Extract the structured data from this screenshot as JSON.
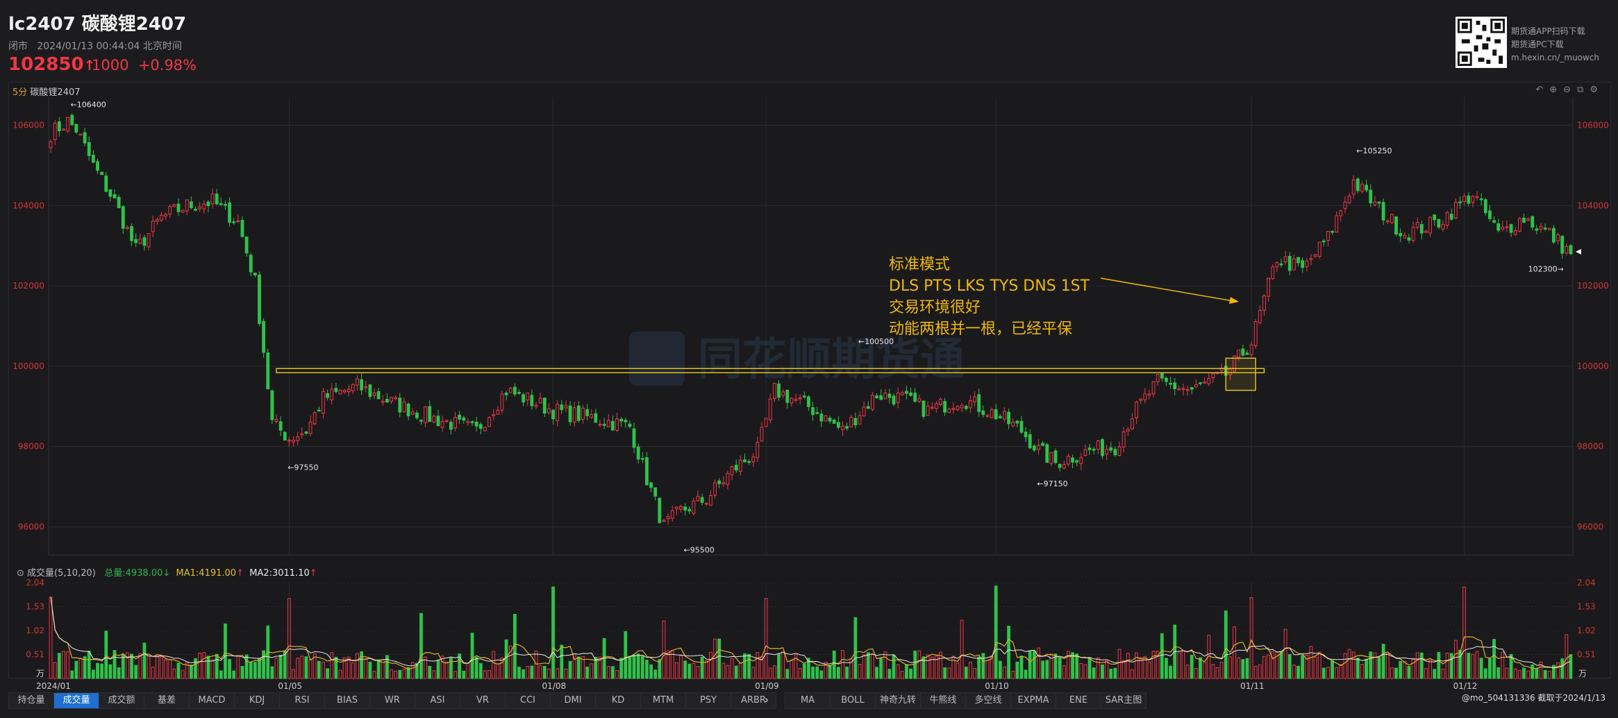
{
  "header": {
    "symbol": "lc2407 碳酸锂2407",
    "status": "闭市",
    "datetime": "2024/01/13 00:44:04 北京时间",
    "price": "102850",
    "change": "1000",
    "change_pct": "+0.98%",
    "arrow": "↑"
  },
  "qr": {
    "line1": "期货通APP扫码下载",
    "line2": "期货通PC下载",
    "line3": "m.hexin.cn/_muowch"
  },
  "chart_title": {
    "period": "5分",
    "name": "碳酸锂2407"
  },
  "watermark": "同花顺期货通",
  "volume_legend": {
    "name": "成交量(5,10,20)",
    "total": "总量:4938.00",
    "ma1": "MA1:4191.00",
    "ma2": "MA2:3011.10"
  },
  "annotation": {
    "line1": "标准模式",
    "line2": "DLS PTS LKS TYS DNS 1ST",
    "line3": "交易环境很好",
    "line4": "动能两根并一根，已经平保"
  },
  "tabs_left": [
    "持仓量",
    "成交量",
    "成交额",
    "基差",
    "MACD",
    "KDJ",
    "RSI",
    "BIAS",
    "WR",
    "ASI",
    "VR",
    "CCI",
    "DMI",
    "KD",
    "MTM",
    "PSY",
    "ARBR"
  ],
  "tabs_right": [
    "MA",
    "BOLL",
    "神奇九转",
    "牛熊线",
    "多空线",
    "EXPMA",
    "ENE",
    "SAR主图"
  ],
  "footer": "@mo_504131336  截取于2024/1/13",
  "volume_unit": "万",
  "colors": {
    "up": "#f23645",
    "down": "#2fc24a",
    "ma1": "#e0b020",
    "ma2": "#e8e8e8",
    "annotation": "#f0b800",
    "background": "#1a1a1d"
  },
  "chart_data": [
    {
      "type": "candlestick",
      "ylim": [
        95300,
        106700
      ],
      "y_ticks": [
        96000,
        98000,
        100000,
        102000,
        104000,
        106000
      ],
      "x_ticks": [
        "01/05",
        "01/08",
        "01/09",
        "01/10",
        "01/11",
        "01/12"
      ],
      "anchors": [
        {
          "i": 0,
          "close": 105800
        },
        {
          "i": 4,
          "close": 106100
        },
        {
          "i": 6,
          "close": 105900
        },
        {
          "i": 10,
          "close": 105000
        },
        {
          "i": 15,
          "close": 104100
        },
        {
          "i": 20,
          "close": 102900
        },
        {
          "i": 26,
          "close": 103700
        },
        {
          "i": 32,
          "close": 104000
        },
        {
          "i": 38,
          "close": 104100
        },
        {
          "i": 44,
          "close": 103600
        },
        {
          "i": 48,
          "close": 102100
        },
        {
          "i": 50,
          "close": 100400
        },
        {
          "i": 52,
          "close": 98600
        },
        {
          "i": 56,
          "close": 98200
        },
        {
          "i": 60,
          "close": 98400
        },
        {
          "i": 64,
          "close": 99200
        },
        {
          "i": 72,
          "close": 99500
        },
        {
          "i": 80,
          "close": 99100
        },
        {
          "i": 90,
          "close": 98700
        },
        {
          "i": 100,
          "close": 98400
        },
        {
          "i": 107,
          "close": 99400
        },
        {
          "i": 118,
          "close": 98900
        },
        {
          "i": 128,
          "close": 98700
        },
        {
          "i": 136,
          "close": 98500
        },
        {
          "i": 140,
          "close": 97200
        },
        {
          "i": 144,
          "close": 96000
        },
        {
          "i": 148,
          "close": 96400
        },
        {
          "i": 154,
          "close": 96700
        },
        {
          "i": 160,
          "close": 97400
        },
        {
          "i": 166,
          "close": 97900
        },
        {
          "i": 170,
          "close": 99400
        },
        {
          "i": 178,
          "close": 99000
        },
        {
          "i": 186,
          "close": 98400
        },
        {
          "i": 194,
          "close": 99300
        },
        {
          "i": 200,
          "close": 99200
        },
        {
          "i": 206,
          "close": 98900
        },
        {
          "i": 214,
          "close": 99200
        },
        {
          "i": 222,
          "close": 98800
        },
        {
          "i": 228,
          "close": 98400
        },
        {
          "i": 232,
          "close": 97900
        },
        {
          "i": 236,
          "close": 97600
        },
        {
          "i": 244,
          "close": 97900
        },
        {
          "i": 250,
          "close": 98000
        },
        {
          "i": 254,
          "close": 98800
        },
        {
          "i": 260,
          "close": 99600
        },
        {
          "i": 268,
          "close": 99400
        },
        {
          "i": 276,
          "close": 99800
        },
        {
          "i": 282,
          "close": 100600
        },
        {
          "i": 288,
          "close": 102700
        },
        {
          "i": 294,
          "close": 102400
        },
        {
          "i": 300,
          "close": 103200
        },
        {
          "i": 306,
          "close": 104600
        },
        {
          "i": 312,
          "close": 103900
        },
        {
          "i": 318,
          "close": 103300
        },
        {
          "i": 326,
          "close": 103600
        },
        {
          "i": 334,
          "close": 104300
        },
        {
          "i": 340,
          "close": 103300
        },
        {
          "i": 346,
          "close": 103700
        },
        {
          "i": 352,
          "close": 103300
        },
        {
          "i": 357,
          "close": 102800
        }
      ],
      "bars": 358,
      "price_labels": [
        {
          "text": "106400",
          "value": 106400,
          "bar": 4
        },
        {
          "text": "97550",
          "value": 97550,
          "bar": 55
        },
        {
          "text": "95500",
          "value": 95500,
          "bar": 148
        },
        {
          "text": "100500",
          "value": 100500,
          "bar": 189
        },
        {
          "text": "97150",
          "value": 97150,
          "bar": 231
        },
        {
          "text": "105250",
          "value": 105250,
          "bar": 306
        },
        {
          "text": "102300",
          "value": 102300,
          "bar": 356
        }
      ],
      "support_line": {
        "value": 99890,
        "from_bar": 53,
        "to_bar": 285
      }
    },
    {
      "type": "bar",
      "name": "成交量",
      "ylim": [
        0,
        2.04
      ],
      "y_ticks": [
        0.51,
        1.02,
        1.53,
        2.04
      ],
      "x_ticks": [
        "2024/01",
        "01/05",
        "01/08",
        "01/09",
        "01/10",
        "01/11",
        "01/12"
      ]
    }
  ]
}
